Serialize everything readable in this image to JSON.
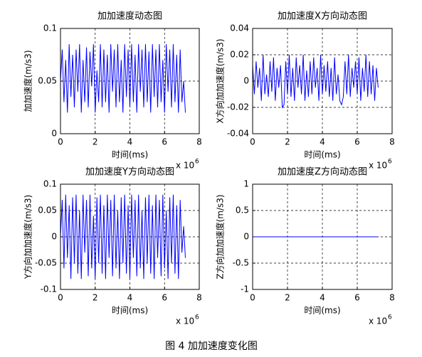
{
  "chart_data": [
    {
      "type": "line",
      "title": "加加速度动态图",
      "xlabel": "时间(ms)",
      "ylabel": "加加速度(m/s3)",
      "x_multiplier": "x 10",
      "x_exponent": "6",
      "xlim": [
        0,
        8
      ],
      "xticks": [
        0,
        2,
        4,
        6,
        8
      ],
      "ylim": [
        0,
        0.1
      ],
      "yticks": [
        0,
        0.05,
        0.1
      ],
      "grid": true,
      "color": "#0000ff",
      "x": [
        0,
        0.1,
        0.2,
        0.3,
        0.4,
        0.5,
        0.6,
        0.7,
        0.8,
        0.9,
        1,
        1.1,
        1.2,
        1.3,
        1.4,
        1.5,
        1.6,
        1.7,
        1.8,
        1.9,
        2,
        2.1,
        2.2,
        2.3,
        2.4,
        2.5,
        2.6,
        2.7,
        2.8,
        2.9,
        3,
        3.1,
        3.2,
        3.3,
        3.4,
        3.5,
        3.6,
        3.7,
        3.8,
        3.9,
        4,
        4.1,
        4.2,
        4.3,
        4.4,
        4.5,
        4.6,
        4.7,
        4.8,
        4.9,
        5,
        5.1,
        5.2,
        5.3,
        5.4,
        5.5,
        5.6,
        5.7,
        5.8,
        5.9,
        6,
        6.1,
        6.2,
        6.3,
        6.4,
        6.5,
        6.6,
        6.7,
        6.8,
        6.9,
        7,
        7.1,
        7.2
      ],
      "values": [
        0.05,
        0.08,
        0.03,
        0.07,
        0.02,
        0.085,
        0.035,
        0.075,
        0.025,
        0.08,
        0.04,
        0.085,
        0.02,
        0.07,
        0.03,
        0.082,
        0.025,
        0.078,
        0.045,
        0.085,
        0.02,
        0.06,
        0.03,
        0.085,
        0.025,
        0.08,
        0.03,
        0.075,
        0.02,
        0.085,
        0.04,
        0.08,
        0.025,
        0.085,
        0.03,
        0.07,
        0.02,
        0.085,
        0.035,
        0.08,
        0.025,
        0.085,
        0.03,
        0.075,
        0.02,
        0.085,
        0.04,
        0.08,
        0.025,
        0.085,
        0.03,
        0.078,
        0.02,
        0.085,
        0.035,
        0.08,
        0.025,
        0.085,
        0.03,
        0.07,
        0.02,
        0.085,
        0.04,
        0.08,
        0.025,
        0.085,
        0.03,
        0.075,
        0.02,
        0.08,
        0.03,
        0.05,
        0.02
      ]
    },
    {
      "type": "line",
      "title": "加加速度X方向动态图",
      "xlabel": "时间(ms)",
      "ylabel": "X方向加加速度(m/s3)",
      "x_multiplier": "x 10",
      "x_exponent": "6",
      "xlim": [
        0,
        8
      ],
      "xticks": [
        0,
        2,
        4,
        6,
        8
      ],
      "ylim": [
        -0.04,
        0.04
      ],
      "yticks": [
        -0.04,
        -0.02,
        0,
        0.02,
        0.04
      ],
      "grid": true,
      "color": "#0000ff",
      "x": [
        0,
        0.1,
        0.2,
        0.3,
        0.4,
        0.5,
        0.6,
        0.7,
        0.8,
        0.9,
        1,
        1.1,
        1.2,
        1.3,
        1.4,
        1.5,
        1.6,
        1.7,
        1.8,
        1.9,
        2,
        2.1,
        2.2,
        2.3,
        2.4,
        2.5,
        2.6,
        2.7,
        2.8,
        2.9,
        3,
        3.1,
        3.2,
        3.3,
        3.4,
        3.5,
        3.6,
        3.7,
        3.8,
        3.9,
        4,
        4.1,
        4.2,
        4.3,
        4.4,
        4.5,
        4.6,
        4.7,
        4.8,
        4.9,
        5,
        5.1,
        5.2,
        5.3,
        5.4,
        5.5,
        5.6,
        5.7,
        5.8,
        5.9,
        6,
        6.1,
        6.2,
        6.3,
        6.4,
        6.5,
        6.6,
        6.7,
        6.8,
        6.9,
        7,
        7.1,
        7.2
      ],
      "values": [
        0.012,
        -0.01,
        0.015,
        -0.005,
        0.01,
        -0.015,
        0.02,
        -0.01,
        0.005,
        -0.012,
        0.015,
        -0.008,
        0.018,
        -0.015,
        0.01,
        -0.005,
        0.012,
        -0.02,
        -0.018,
        0.015,
        -0.01,
        0.02,
        -0.012,
        0.01,
        -0.015,
        0.018,
        -0.005,
        0.012,
        -0.01,
        0.02,
        -0.015,
        0.008,
        -0.012,
        0.015,
        -0.01,
        0.018,
        -0.005,
        0.01,
        -0.015,
        0.02,
        -0.01,
        0.012,
        -0.008,
        0.015,
        -0.012,
        0.01,
        -0.015,
        0.018,
        -0.01,
        0.005,
        -0.015,
        -0.018,
        -0.012,
        0.015,
        -0.01,
        0.02,
        -0.012,
        0.01,
        -0.005,
        0.015,
        -0.01,
        0.018,
        -0.015,
        0.01,
        -0.008,
        0.02,
        -0.012,
        0.015,
        -0.01,
        0.012,
        -0.015,
        0.01,
        -0.005
      ]
    },
    {
      "type": "line",
      "title": "加加速度Y方向动态图",
      "xlabel": "时间(ms)",
      "ylabel": "Y方向加加速度(m/s3)",
      "x_multiplier": "x 10",
      "x_exponent": "6",
      "xlim": [
        0,
        8
      ],
      "xticks": [
        0,
        2,
        4,
        6,
        8
      ],
      "ylim": [
        -0.1,
        0.1
      ],
      "yticks": [
        -0.1,
        -0.05,
        0,
        0.05,
        0.1
      ],
      "grid": true,
      "color": "#0000ff",
      "x": [
        0,
        0.1,
        0.2,
        0.3,
        0.4,
        0.5,
        0.6,
        0.7,
        0.8,
        0.9,
        1,
        1.1,
        1.2,
        1.3,
        1.4,
        1.5,
        1.6,
        1.7,
        1.8,
        1.9,
        2,
        2.1,
        2.2,
        2.3,
        2.4,
        2.5,
        2.6,
        2.7,
        2.8,
        2.9,
        3,
        3.1,
        3.2,
        3.3,
        3.4,
        3.5,
        3.6,
        3.7,
        3.8,
        3.9,
        4,
        4.1,
        4.2,
        4.3,
        4.4,
        4.5,
        4.6,
        4.7,
        4.8,
        4.9,
        5,
        5.1,
        5.2,
        5.3,
        5.4,
        5.5,
        5.6,
        5.7,
        5.8,
        5.9,
        6,
        6.1,
        6.2,
        6.3,
        6.4,
        6.5,
        6.6,
        6.7,
        6.8,
        6.9,
        7,
        7.1,
        7.2
      ],
      "values": [
        0.0,
        0.07,
        -0.06,
        0.08,
        -0.04,
        0.06,
        -0.08,
        0.075,
        -0.05,
        0.08,
        -0.07,
        0.05,
        -0.08,
        0.08,
        -0.03,
        0.07,
        -0.075,
        0.08,
        -0.06,
        0.04,
        -0.08,
        0.075,
        -0.05,
        0.08,
        -0.07,
        0.06,
        -0.08,
        0.08,
        -0.04,
        0.07,
        -0.075,
        0.08,
        -0.06,
        0.05,
        -0.08,
        0.075,
        -0.05,
        0.08,
        -0.07,
        0.06,
        -0.08,
        0.08,
        -0.04,
        0.07,
        -0.075,
        0.08,
        -0.06,
        0.05,
        -0.08,
        0.075,
        -0.05,
        0.08,
        -0.07,
        0.06,
        -0.08,
        0.08,
        -0.04,
        0.07,
        -0.075,
        0.08,
        -0.06,
        0.05,
        -0.08,
        0.075,
        -0.05,
        0.08,
        -0.07,
        0.06,
        -0.08,
        0.07,
        -0.03,
        0.02,
        -0.04
      ]
    },
    {
      "type": "line",
      "title": "加加速度Z方向动态图",
      "xlabel": "时间(ms)",
      "ylabel": "Z方向加加速度(m/s3)",
      "x_multiplier": "x 10",
      "x_exponent": "6",
      "xlim": [
        0,
        8
      ],
      "xticks": [
        0,
        2,
        4,
        6,
        8
      ],
      "ylim": [
        -1,
        1
      ],
      "yticks": [
        -1,
        -0.5,
        0,
        0.5,
        1
      ],
      "grid": true,
      "color": "#0000ff",
      "x": [
        0,
        7.2
      ],
      "values": [
        0,
        0
      ]
    }
  ],
  "caption": "图 4  加加速度变化图"
}
